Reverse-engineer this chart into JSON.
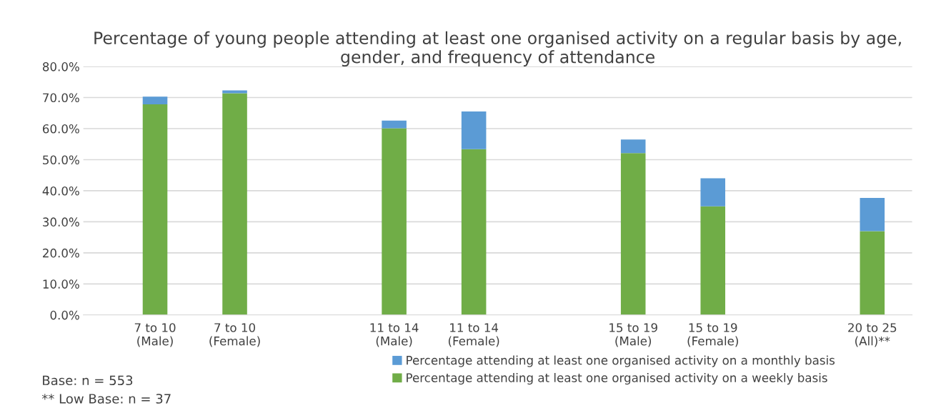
{
  "chart_data": {
    "type": "bar",
    "stacked": true,
    "title": "Percentage of young people attending at least one organised activity on a regular basis by age, gender, and frequency of attendance",
    "categories": [
      "7 to 10\n(Male)",
      "7 to 10\n(Female)",
      null,
      "11 to 14\n(Male)",
      "11 to 14\n(Female)",
      null,
      "15 to 19\n(Male)",
      "15 to 19\n(Female)",
      null,
      "20 to 25\n(All)**"
    ],
    "series": [
      {
        "name": "Percentage attending at least one organised activity on a weekly basis",
        "color": "#70ad47",
        "values": [
          67.8,
          71.4,
          null,
          60.1,
          53.4,
          null,
          52.1,
          35.0,
          null,
          27.0
        ]
      },
      {
        "name": "Percentage attending at least one organised activity on a monthly basis",
        "color": "#5b9bd5",
        "values": [
          2.5,
          0.9,
          null,
          2.5,
          12.1,
          null,
          4.4,
          9.0,
          null,
          10.7
        ]
      }
    ],
    "ylim": [
      0,
      80
    ],
    "yticks": [
      {
        "value": 0,
        "label": "0.0%"
      },
      {
        "value": 10,
        "label": "10.0%"
      },
      {
        "value": 20,
        "label": "20.0%"
      },
      {
        "value": 30,
        "label": "30.0%"
      },
      {
        "value": 40,
        "label": "40.0%"
      },
      {
        "value": 50,
        "label": "50.0%"
      },
      {
        "value": 60,
        "label": "60.0%"
      },
      {
        "value": 70,
        "label": "70.0%"
      },
      {
        "value": 80,
        "label": "80.0%"
      }
    ],
    "grid": "y",
    "legend": "bottom",
    "annotations": [
      "Base: n = 553",
      "** Low Base: n = 37"
    ]
  }
}
